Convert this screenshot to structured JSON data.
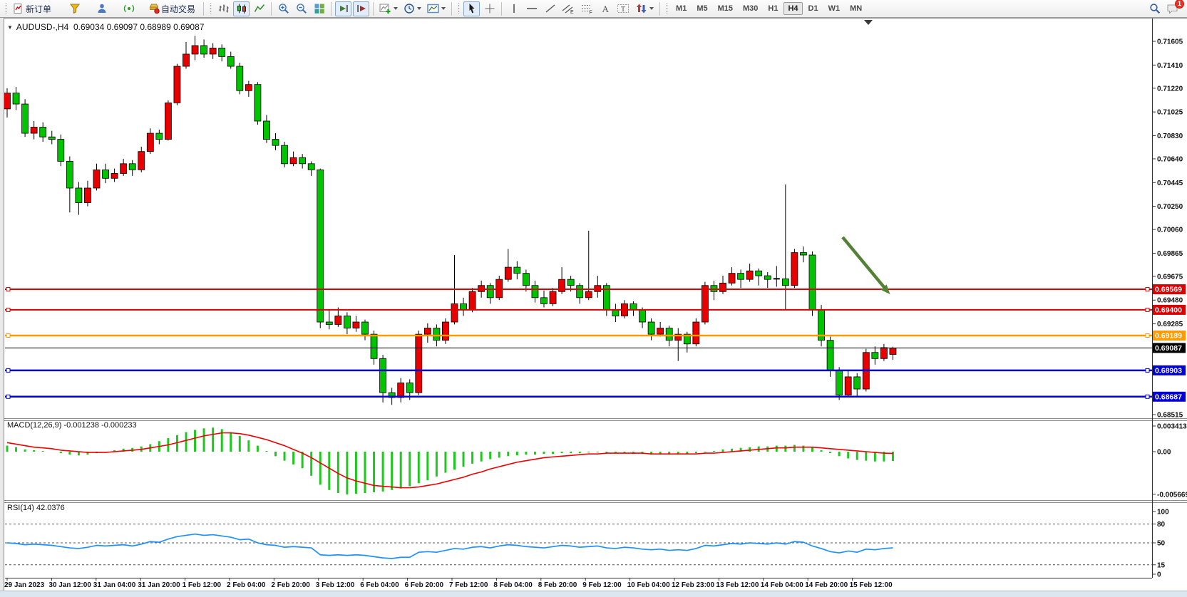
{
  "toolbar": {
    "new_order": "新订单",
    "autotrading": "自动交易",
    "timeframes": [
      "M1",
      "M5",
      "M15",
      "M30",
      "H1",
      "H4",
      "D1",
      "W1",
      "MN"
    ],
    "active_timeframe": "H4",
    "notification_badge": "1"
  },
  "chart": {
    "symbol_title": "AUDUSD-,H4",
    "ohlc_text": "0.69034 0.69097 0.68989 0.69087",
    "open": "0.69034",
    "high": "0.69097",
    "low": "0.68989",
    "close": "0.69087"
  },
  "price_axis": {
    "ticks": [
      "0.71605",
      "0.71410",
      "0.71220",
      "0.71025",
      "0.70830",
      "0.70640",
      "0.70445",
      "0.70250",
      "0.70060",
      "0.69865",
      "0.69675",
      "0.69480",
      "0.69285",
      "0.68515"
    ]
  },
  "levels": [
    {
      "price": "0.69569",
      "value": 0.69569,
      "color": "#dd0000",
      "width": 2,
      "handles": true
    },
    {
      "price": "0.69400",
      "value": 0.694,
      "color": "#dd0000",
      "width": 2,
      "handles": true
    },
    {
      "price": "0.69189",
      "value": 0.69189,
      "color": "#ff9a00",
      "width": 2.5,
      "handles": true
    },
    {
      "price": "0.69087",
      "value": 0.69087,
      "color": "#000000",
      "width": 1,
      "handles": false
    },
    {
      "price": "0.68903",
      "value": 0.68903,
      "color": "#0000d6",
      "width": 2.5,
      "handles": true
    },
    {
      "price": "0.68687",
      "value": 0.68687,
      "color": "#0000d6",
      "width": 2.5,
      "handles": true
    }
  ],
  "indicators": {
    "macd": {
      "label": "MACD(12,26,9) -0.001238 -0.000233",
      "axis": [
        {
          "label": "0.003413",
          "value": 0.003413
        },
        {
          "label": "0.00",
          "value": 0
        },
        {
          "label": "-0.005669",
          "value": -0.005669
        }
      ]
    },
    "rsi": {
      "label": "RSI(14) 42.0376",
      "axis": [
        {
          "label": "100",
          "value": 100,
          "dashed": false
        },
        {
          "label": "80",
          "value": 80,
          "dashed": true
        },
        {
          "label": "50",
          "value": 50,
          "dashed": true
        },
        {
          "label": "15",
          "value": 15,
          "dashed": true
        },
        {
          "label": "0",
          "value": 0,
          "dashed": false
        }
      ]
    }
  },
  "time_axis": [
    "29 Jan 2023",
    "30 Jan 12:00",
    "31 Jan 04:00",
    "31 Jan 20:00",
    "1 Feb 12:00",
    "2 Feb 04:00",
    "2 Feb 20:00",
    "3 Feb 12:00",
    "6 Feb 04:00",
    "6 Feb 20:00",
    "7 Feb 12:00",
    "8 Feb 04:00",
    "8 Feb 20:00",
    "9 Feb 12:00",
    "10 Feb 04:00",
    "12 Feb 23:00",
    "13 Feb 12:00",
    "14 Feb 04:00",
    "14 Feb 20:00",
    "15 Feb 12:00"
  ],
  "annotations": {
    "arrow_color": "#538135"
  },
  "chart_data": {
    "type": "candlestick",
    "symbol": "AUDUSD",
    "timeframe": "H4",
    "up_color": "#e80000",
    "down_color": "#00c400",
    "candles": [
      [
        0.7105,
        0.7122,
        0.7098,
        0.7118
      ],
      [
        0.7118,
        0.7123,
        0.7104,
        0.7109
      ],
      [
        0.7109,
        0.7113,
        0.7082,
        0.7085
      ],
      [
        0.7085,
        0.7095,
        0.708,
        0.709
      ],
      [
        0.709,
        0.7094,
        0.7078,
        0.7082
      ],
      [
        0.7082,
        0.7087,
        0.7076,
        0.708
      ],
      [
        0.708,
        0.7084,
        0.7058,
        0.7062
      ],
      [
        0.7062,
        0.7066,
        0.702,
        0.704
      ],
      [
        0.704,
        0.7045,
        0.7018,
        0.7028
      ],
      [
        0.7028,
        0.7046,
        0.7025,
        0.704
      ],
      [
        0.704,
        0.706,
        0.7038,
        0.7055
      ],
      [
        0.7055,
        0.706,
        0.7044,
        0.7048
      ],
      [
        0.7048,
        0.7056,
        0.7045,
        0.7052
      ],
      [
        0.7052,
        0.7064,
        0.705,
        0.706
      ],
      [
        0.706,
        0.7063,
        0.705,
        0.7055
      ],
      [
        0.7055,
        0.7074,
        0.7053,
        0.707
      ],
      [
        0.707,
        0.7089,
        0.7068,
        0.7085
      ],
      [
        0.7085,
        0.7088,
        0.7076,
        0.708
      ],
      [
        0.708,
        0.7112,
        0.7079,
        0.711
      ],
      [
        0.711,
        0.7142,
        0.7108,
        0.714
      ],
      [
        0.714,
        0.716,
        0.7138,
        0.715
      ],
      [
        0.715,
        0.7165,
        0.7145,
        0.7157
      ],
      [
        0.7157,
        0.7162,
        0.7147,
        0.715
      ],
      [
        0.715,
        0.7159,
        0.7146,
        0.7155
      ],
      [
        0.7155,
        0.7158,
        0.7144,
        0.7148
      ],
      [
        0.7148,
        0.7152,
        0.7138,
        0.714
      ],
      [
        0.714,
        0.7143,
        0.7117,
        0.712
      ],
      [
        0.712,
        0.7128,
        0.7115,
        0.7125
      ],
      [
        0.7125,
        0.7127,
        0.7092,
        0.7095
      ],
      [
        0.7095,
        0.71,
        0.7077,
        0.708
      ],
      [
        0.708,
        0.7085,
        0.7071,
        0.7075
      ],
      [
        0.7075,
        0.7078,
        0.7057,
        0.706
      ],
      [
        0.706,
        0.707,
        0.7058,
        0.7065
      ],
      [
        0.7065,
        0.7068,
        0.7056,
        0.706
      ],
      [
        0.706,
        0.7062,
        0.705,
        0.7055
      ],
      [
        0.7055,
        0.7056,
        0.6925,
        0.693
      ],
      [
        0.693,
        0.694,
        0.6924,
        0.6928
      ],
      [
        0.6928,
        0.6942,
        0.6926,
        0.6935
      ],
      [
        0.6935,
        0.6938,
        0.692,
        0.6925
      ],
      [
        0.6925,
        0.6935,
        0.6922,
        0.693
      ],
      [
        0.693,
        0.6932,
        0.6915,
        0.692
      ],
      [
        0.692,
        0.6923,
        0.6895,
        0.69
      ],
      [
        0.69,
        0.6903,
        0.6864,
        0.6872
      ],
      [
        0.6872,
        0.6876,
        0.6862,
        0.6868
      ],
      [
        0.6868,
        0.6884,
        0.6864,
        0.688
      ],
      [
        0.688,
        0.6883,
        0.6866,
        0.6872
      ],
      [
        0.6872,
        0.6923,
        0.687,
        0.692
      ],
      [
        0.692,
        0.6929,
        0.6913,
        0.6925
      ],
      [
        0.6925,
        0.6928,
        0.691,
        0.6915
      ],
      [
        0.6915,
        0.6933,
        0.6912,
        0.693
      ],
      [
        0.693,
        0.6985,
        0.6928,
        0.6945
      ],
      [
        0.6945,
        0.695,
        0.6935,
        0.694
      ],
      [
        0.694,
        0.6958,
        0.6938,
        0.6955
      ],
      [
        0.6955,
        0.6964,
        0.695,
        0.696
      ],
      [
        0.696,
        0.6962,
        0.6945,
        0.695
      ],
      [
        0.695,
        0.6968,
        0.6948,
        0.6965
      ],
      [
        0.6965,
        0.699,
        0.6963,
        0.6975
      ],
      [
        0.6975,
        0.698,
        0.6965,
        0.697
      ],
      [
        0.697,
        0.6973,
        0.6955,
        0.696
      ],
      [
        0.696,
        0.6964,
        0.6946,
        0.695
      ],
      [
        0.695,
        0.6956,
        0.6942,
        0.6945
      ],
      [
        0.6945,
        0.6958,
        0.6943,
        0.6955
      ],
      [
        0.6955,
        0.6975,
        0.6953,
        0.6965
      ],
      [
        0.6965,
        0.6968,
        0.6955,
        0.696
      ],
      [
        0.696,
        0.6962,
        0.6945,
        0.695
      ],
      [
        0.695,
        0.7005,
        0.6948,
        0.6955
      ],
      [
        0.6955,
        0.6968,
        0.695,
        0.696
      ],
      [
        0.696,
        0.6962,
        0.6935,
        0.694
      ],
      [
        0.694,
        0.6945,
        0.693,
        0.6935
      ],
      [
        0.6935,
        0.6948,
        0.6933,
        0.6945
      ],
      [
        0.6945,
        0.6947,
        0.6935,
        0.694
      ],
      [
        0.694,
        0.6942,
        0.6925,
        0.693
      ],
      [
        0.693,
        0.6933,
        0.6915,
        0.692
      ],
      [
        0.692,
        0.693,
        0.6918,
        0.6925
      ],
      [
        0.6925,
        0.6927,
        0.691,
        0.6915
      ],
      [
        0.6915,
        0.6925,
        0.6898,
        0.692
      ],
      [
        0.692,
        0.6922,
        0.6905,
        0.6912
      ],
      [
        0.6912,
        0.6933,
        0.691,
        0.693
      ],
      [
        0.693,
        0.6963,
        0.6928,
        0.696
      ],
      [
        0.696,
        0.6964,
        0.6948,
        0.6955
      ],
      [
        0.6955,
        0.6968,
        0.6953,
        0.6962
      ],
      [
        0.6962,
        0.6975,
        0.696,
        0.697
      ],
      [
        0.697,
        0.6973,
        0.6958,
        0.6965
      ],
      [
        0.6965,
        0.6978,
        0.6963,
        0.6972
      ],
      [
        0.6972,
        0.6974,
        0.696,
        0.6968
      ],
      [
        0.6968,
        0.6971,
        0.6958,
        0.6965
      ],
      [
        0.6965,
        0.6976,
        0.6959,
        0.69655
      ],
      [
        0.69655,
        0.7043,
        0.694,
        0.696
      ],
      [
        0.696,
        0.699,
        0.6958,
        0.6987
      ],
      [
        0.6987,
        0.6992,
        0.6979,
        0.6985
      ],
      [
        0.6985,
        0.6988,
        0.6935,
        0.694
      ],
      [
        0.694,
        0.6944,
        0.691,
        0.6915
      ],
      [
        0.6915,
        0.6918,
        0.6885,
        0.689
      ],
      [
        0.689,
        0.6893,
        0.6866,
        0.687
      ],
      [
        0.687,
        0.689,
        0.6868,
        0.6885
      ],
      [
        0.6885,
        0.6888,
        0.6868,
        0.6875
      ],
      [
        0.6875,
        0.6908,
        0.6873,
        0.6905
      ],
      [
        0.6905,
        0.691,
        0.6895,
        0.69
      ],
      [
        0.69,
        0.6912,
        0.6898,
        0.6909
      ],
      [
        0.69034,
        0.69097,
        0.68989,
        0.69087
      ]
    ],
    "macd_histogram": [
      0.0008,
      0.0006,
      0.0003,
      0.0002,
      0.0001,
      0,
      -0.0002,
      -0.0004,
      -0.0005,
      -0.0004,
      -0.0002,
      0,
      0.0002,
      0.0004,
      0.0005,
      0.0007,
      0.001,
      0.0014,
      0.0018,
      0.0022,
      0.0026,
      0.0029,
      0.0031,
      0.0032,
      0.003,
      0.0026,
      0.0021,
      0.0015,
      0.0008,
      0.0001,
      -0.0006,
      -0.0012,
      -0.0017,
      -0.0022,
      -0.0032,
      -0.0044,
      -0.0051,
      -0.0055,
      -0.0057,
      -0.0056,
      -0.0055,
      -0.0054,
      -0.0053,
      -0.0051,
      -0.0049,
      -0.0046,
      -0.0042,
      -0.0038,
      -0.0033,
      -0.0028,
      -0.0024,
      -0.002,
      -0.0016,
      -0.0013,
      -0.001,
      -0.0008,
      -0.0006,
      -0.0005,
      -0.0004,
      -0.0004,
      -0.0003,
      -0.0003,
      -0.0002,
      -0.0002,
      -0.0002,
      -0.0001,
      -0.0001,
      -0.0002,
      -0.0002,
      -0.0002,
      -0.0003,
      -0.0003,
      -0.0004,
      -0.0004,
      -0.0004,
      -0.0004,
      -0.0003,
      -0.0002,
      -0.0001,
      0.0001,
      0.0003,
      0.0004,
      0.0005,
      0.0006,
      0.0007,
      0.0007,
      0.0008,
      0.0008,
      0.0009,
      0.0008,
      0.0006,
      0.0002,
      -0.0002,
      -0.0006,
      -0.0009,
      -0.0011,
      -0.0012,
      -0.0013,
      -0.0013,
      -0.001238
    ],
    "macd_signal": [
      0.0012,
      0.001,
      0.0008,
      0.0006,
      0.0005,
      0.0004,
      0.0002,
      0.0001,
      0,
      -0.0001,
      -0.0001,
      -0.0001,
      0,
      0.0001,
      0.0002,
      0.0003,
      0.0005,
      0.0007,
      0.0009,
      0.0012,
      0.0015,
      0.0018,
      0.0021,
      0.0023,
      0.0025,
      0.0025,
      0.0024,
      0.0022,
      0.0019,
      0.0016,
      0.0012,
      0.0008,
      0.0003,
      -0.0002,
      -0.0008,
      -0.0015,
      -0.0022,
      -0.0029,
      -0.0035,
      -0.0039,
      -0.0042,
      -0.0045,
      -0.0046,
      -0.0047,
      -0.0048,
      -0.0048,
      -0.0047,
      -0.0045,
      -0.0043,
      -0.004,
      -0.0037,
      -0.0034,
      -0.003,
      -0.0027,
      -0.0023,
      -0.002,
      -0.0017,
      -0.0014,
      -0.0012,
      -0.001,
      -0.0008,
      -0.0007,
      -0.0006,
      -0.0005,
      -0.0004,
      -0.0003,
      -0.0003,
      -0.0002,
      -0.0002,
      -0.0002,
      -0.0002,
      -0.0002,
      -0.0003,
      -0.0003,
      -0.0003,
      -0.0003,
      -0.0003,
      -0.0003,
      -0.0002,
      -0.0002,
      -0.0001,
      0,
      0.0001,
      0.0002,
      0.0003,
      0.0004,
      0.0005,
      0.0005,
      0.0006,
      0.0006,
      0.0006,
      0.0005,
      0.0004,
      0.0003,
      0.0002,
      0.0001,
      0,
      -0.0001,
      -0.0002,
      -0.000233
    ],
    "rsi": [
      50,
      49,
      47,
      48,
      47,
      46,
      44,
      42,
      41,
      43,
      46,
      45,
      46,
      47,
      45,
      48,
      52,
      51,
      56,
      60,
      62,
      64,
      62,
      63,
      61,
      59,
      55,
      56,
      50,
      47,
      46,
      43,
      44,
      43,
      42,
      31,
      30,
      31,
      30,
      31,
      30,
      28,
      26,
      25,
      27,
      27,
      35,
      36,
      35,
      38,
      41,
      40,
      43,
      44,
      42,
      45,
      47,
      46,
      44,
      43,
      42,
      44,
      46,
      45,
      43,
      44,
      45,
      42,
      41,
      43,
      42,
      40,
      39,
      40,
      38,
      39,
      38,
      41,
      46,
      45,
      47,
      49,
      48,
      50,
      49,
      48,
      50,
      48,
      52,
      51,
      45,
      41,
      36,
      34,
      37,
      35,
      40,
      39,
      41,
      42.0376
    ]
  }
}
